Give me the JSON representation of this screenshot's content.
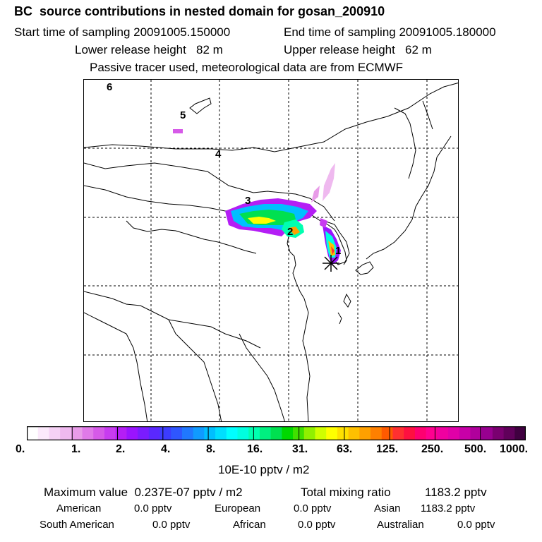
{
  "header": {
    "title": "BC  source contributions in nested domain for gosan_200910",
    "start_label": "Start time of sampling 20091005.150000",
    "end_label": "End time of sampling 20091005.180000",
    "lower_label": "Lower release height   82 m",
    "upper_label": "Upper release height   62 m",
    "tracer_line": "Passive tracer used, meteorological data are from ECMWF"
  },
  "map": {
    "markers": [
      "1",
      "2",
      "3",
      "4",
      "5",
      "6"
    ],
    "receptor_icon": "asterisk-star"
  },
  "colorbar": {
    "tick_labels": [
      "0.",
      "1.",
      "2.",
      "4.",
      "8.",
      "16.",
      "31.",
      "63.",
      "125.",
      "250.",
      "500.",
      "1000."
    ],
    "colors": [
      "#ffffff",
      "#fbe9fb",
      "#f5d2f5",
      "#efb9ef",
      "#e89ce8",
      "#e07ae8",
      "#d65ae8",
      "#c83cf0",
      "#b41ef5",
      "#9a14ff",
      "#7a1cff",
      "#5a28ff",
      "#3c3cff",
      "#2f56ff",
      "#2078ff",
      "#109bff",
      "#00bfff",
      "#00dfff",
      "#00ffff",
      "#00ffe0",
      "#00ffb0",
      "#00f080",
      "#00e050",
      "#00d800",
      "#40e000",
      "#90f000",
      "#d0ff00",
      "#ffff00",
      "#ffe000",
      "#ffc000",
      "#ffa000",
      "#ff8000",
      "#ff5a00",
      "#ff3030",
      "#ff1040",
      "#ff0070",
      "#ff0090",
      "#f000a0",
      "#e000a8",
      "#c800a8",
      "#b0009c",
      "#980090",
      "#7a0070",
      "#60005a",
      "#400040"
    ],
    "unit": "10E-10 pptv / m2"
  },
  "stats": {
    "max_label": "Maximum value  0.237E-07 pptv / m2",
    "total_label": "Total mixing ratio",
    "total_value": "1183.2 pptv"
  },
  "regions": [
    {
      "name": "American",
      "value": "0.0 pptv"
    },
    {
      "name": "European",
      "value": "0.0 pptv"
    },
    {
      "name": "Asian",
      "value": "1183.2 pptv"
    },
    {
      "name": "South American",
      "value": "0.0 pptv"
    },
    {
      "name": "African",
      "value": "0.0 pptv"
    },
    {
      "name": "Australian",
      "value": "0.0 pptv"
    }
  ]
}
